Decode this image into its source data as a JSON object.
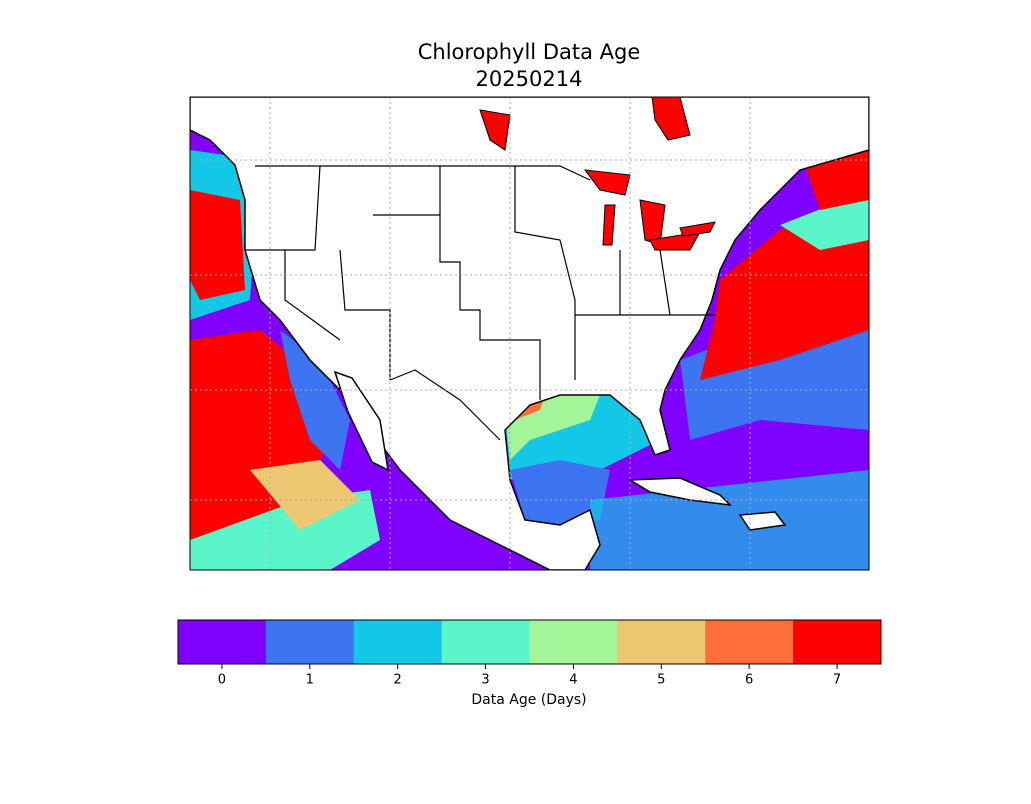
{
  "title": "Chlorophyll Data Age",
  "subtitle": "20250214",
  "colorbar": {
    "label": "Data Age (Days)",
    "ticks": [
      0,
      1,
      2,
      3,
      4,
      5,
      6,
      7
    ],
    "colors": [
      "#8000ff",
      "#3c74f1",
      "#12c8e6",
      "#5af5c8",
      "#a4f597",
      "#edc671",
      "#ff6e3b",
      "#ff0000"
    ]
  }
}
